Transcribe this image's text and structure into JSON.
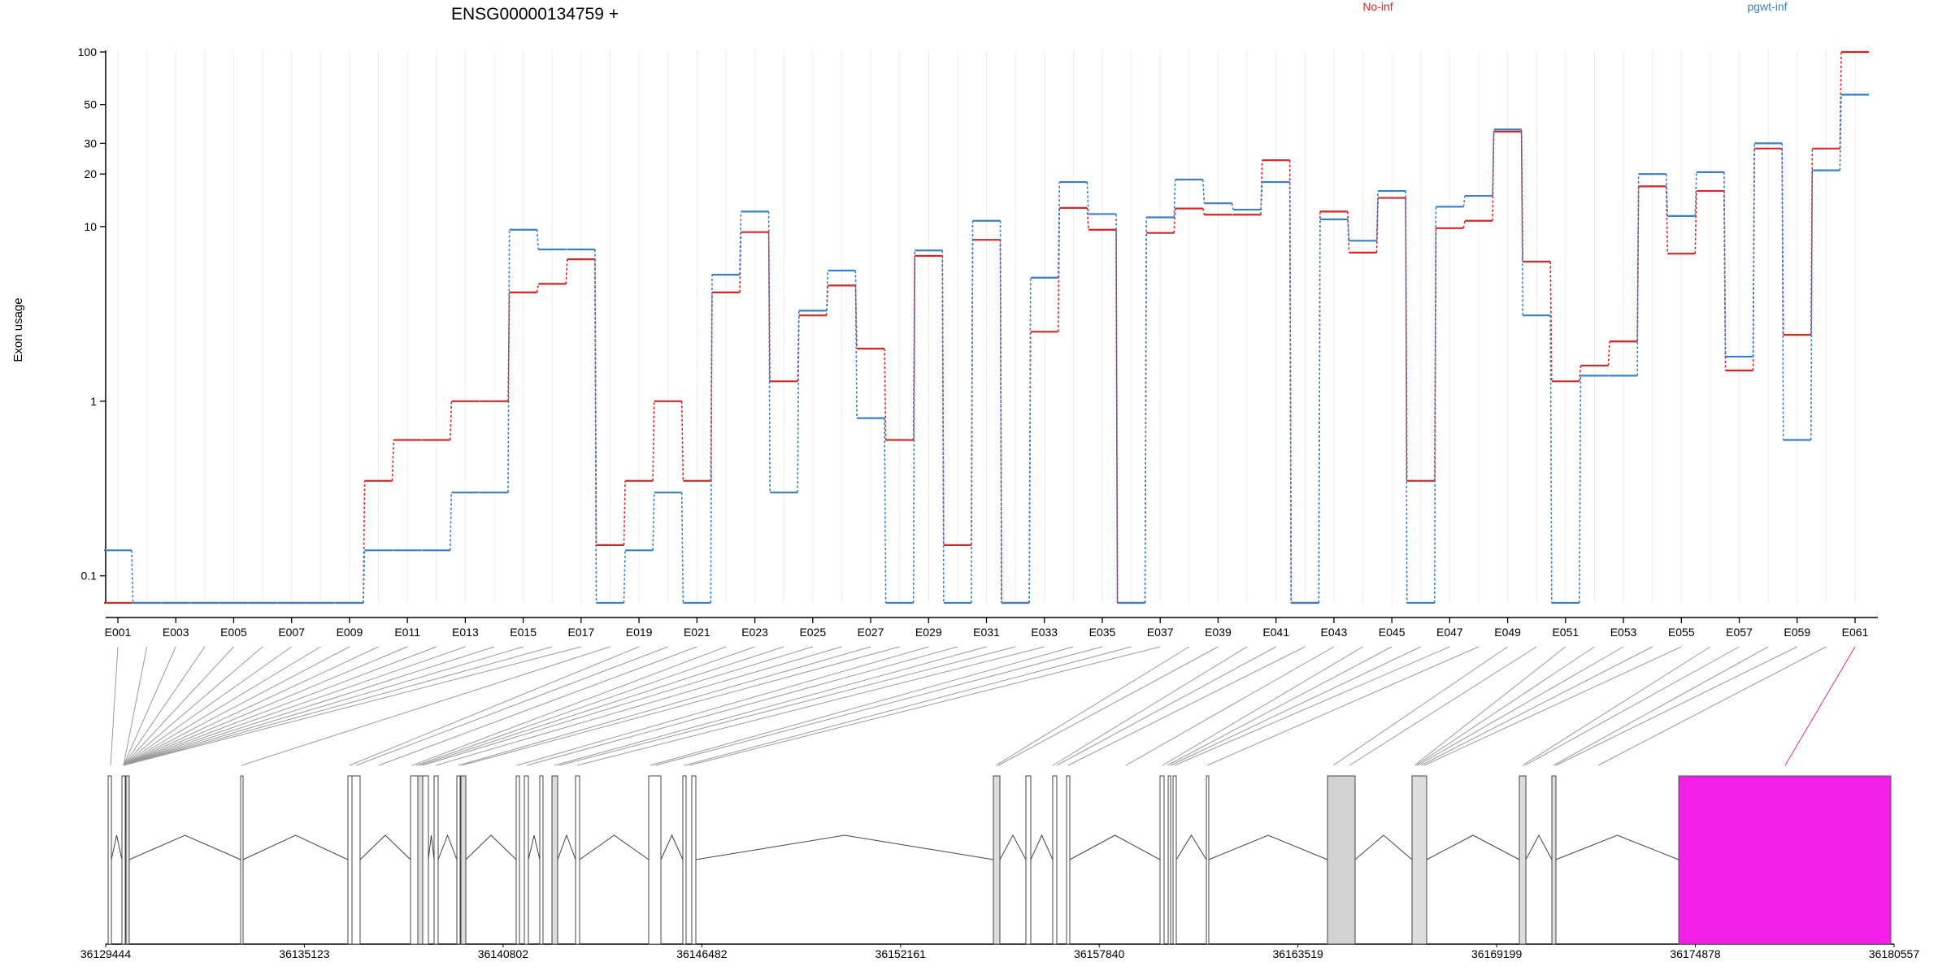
{
  "chart_data": {
    "type": "line",
    "title": "ENSG00000134759 +",
    "ylabel": "Exon usage",
    "xlabel": "",
    "y_scale": "log",
    "ylim": [
      0.07,
      100
    ],
    "y_ticks": [
      "0.1",
      "1",
      "10",
      "20",
      "30",
      "50",
      "100"
    ],
    "grid": "vertical",
    "legend": [
      "No-inf",
      "pgwt-inf"
    ],
    "legend_placement": "top",
    "colors": {
      "No-inf": "#d62728",
      "pgwt-inf": "#3b7fc4"
    },
    "categories": [
      "E001",
      "E002",
      "E003",
      "E004",
      "E005",
      "E006",
      "E007",
      "E008",
      "E009",
      "E010",
      "E011",
      "E012",
      "E013",
      "E014",
      "E015",
      "E016",
      "E017",
      "E018",
      "E019",
      "E020",
      "E021",
      "E022",
      "E023",
      "E024",
      "E025",
      "E026",
      "E027",
      "E028",
      "E029",
      "E030",
      "E031",
      "E032",
      "E033",
      "E034",
      "E035",
      "E036",
      "E037",
      "E038",
      "E039",
      "E040",
      "E041",
      "E042",
      "E043",
      "E044",
      "E045",
      "E046",
      "E047",
      "E048",
      "E049",
      "E050",
      "E051",
      "E052",
      "E053",
      "E054",
      "E055",
      "E056",
      "E057",
      "E058",
      "E059",
      "E060",
      "E061"
    ],
    "tick_labels": [
      "E001",
      "E003",
      "E005",
      "E007",
      "E009",
      "E011",
      "E013",
      "E015",
      "E017",
      "E019",
      "E021",
      "E023",
      "E025",
      "E027",
      "E029",
      "E031",
      "E033",
      "E035",
      "E037",
      "E039",
      "E041",
      "E043",
      "E045",
      "E047",
      "E049",
      "E051",
      "E053",
      "E055",
      "E057",
      "E059",
      "E061"
    ],
    "series": [
      {
        "name": "No-inf",
        "values": [
          0.07,
          0.07,
          0.07,
          0.07,
          0.07,
          0.07,
          0.07,
          0.07,
          0.07,
          0.35,
          0.6,
          0.6,
          1,
          1,
          4.2,
          4.7,
          6.5,
          0.15,
          0.35,
          1,
          0.35,
          4.2,
          9.3,
          1.3,
          3.1,
          4.6,
          2,
          0.6,
          6.8,
          0.15,
          8.4,
          0.07,
          2.5,
          12.8,
          9.6,
          0.07,
          9.2,
          12.7,
          11.7,
          11.7,
          24,
          0.07,
          12.2,
          7.1,
          14.6,
          0.35,
          9.8,
          10.8,
          35,
          6.3,
          1.3,
          1.6,
          2.2,
          17,
          7,
          16,
          1.5,
          28,
          2.4,
          28,
          100
        ]
      },
      {
        "name": "pgwt-inf",
        "values": [
          0.14,
          0.07,
          0.07,
          0.07,
          0.07,
          0.07,
          0.07,
          0.07,
          0.07,
          0.14,
          0.14,
          0.14,
          0.3,
          0.3,
          9.6,
          7.4,
          7.4,
          0.07,
          0.14,
          0.3,
          0.07,
          5.3,
          12.2,
          0.3,
          3.3,
          5.6,
          0.8,
          0.07,
          7.3,
          0.07,
          10.8,
          0.07,
          5.1,
          18,
          11.8,
          0.07,
          11.3,
          18.6,
          13.6,
          12.5,
          18,
          0.07,
          11,
          8.3,
          16,
          0.07,
          13,
          15,
          36,
          3.1,
          0.07,
          1.4,
          1.4,
          20,
          11.5,
          20.5,
          1.8,
          30,
          0.6,
          21,
          57
        ]
      }
    ],
    "gene_model": {
      "coordinate_ticks": [
        "36129444",
        "36135123",
        "36140802",
        "36146482",
        "36152161",
        "36157840",
        "36163519",
        "36169199",
        "36174878",
        "36180557"
      ],
      "highlight_color": "#f21fe6"
    }
  }
}
